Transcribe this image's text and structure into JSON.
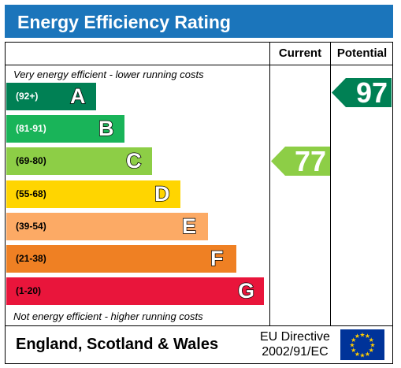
{
  "header": {
    "title": "Energy Efficiency Rating",
    "color": "#1b75bb"
  },
  "columns": {
    "current": "Current",
    "potential": "Potential"
  },
  "notes": {
    "top": "Very energy efficient - lower running costs",
    "bottom": "Not energy efficient - higher running costs"
  },
  "chart_data": {
    "type": "bar",
    "title": "Energy Efficiency Rating",
    "categories": [
      "A",
      "B",
      "C",
      "D",
      "E",
      "F",
      "G"
    ],
    "bands": [
      {
        "letter": "A",
        "range": "(92+)",
        "color": "#008054",
        "range_color": "#ffffff"
      },
      {
        "letter": "B",
        "range": "(81-91)",
        "color": "#19b459",
        "range_color": "#ffffff"
      },
      {
        "letter": "C",
        "range": "(69-80)",
        "color": "#8dce46",
        "range_color": "#000000"
      },
      {
        "letter": "D",
        "range": "(55-68)",
        "color": "#ffd500",
        "range_color": "#000000"
      },
      {
        "letter": "E",
        "range": "(39-54)",
        "color": "#fcaa65",
        "range_color": "#000000"
      },
      {
        "letter": "F",
        "range": "(21-38)",
        "color": "#ef8023",
        "range_color": "#000000"
      },
      {
        "letter": "G",
        "range": "(1-20)",
        "color": "#e9153b",
        "range_color": "#000000"
      }
    ],
    "current": {
      "value": 77,
      "band": "C",
      "color": "#8dce46"
    },
    "potential": {
      "value": 97,
      "band": "A",
      "color": "#008054"
    }
  },
  "footer": {
    "region": "England, Scotland & Wales",
    "directive_line1": "EU Directive",
    "directive_line2": "2002/91/EC",
    "flag_star_color": "#ffcc00"
  }
}
